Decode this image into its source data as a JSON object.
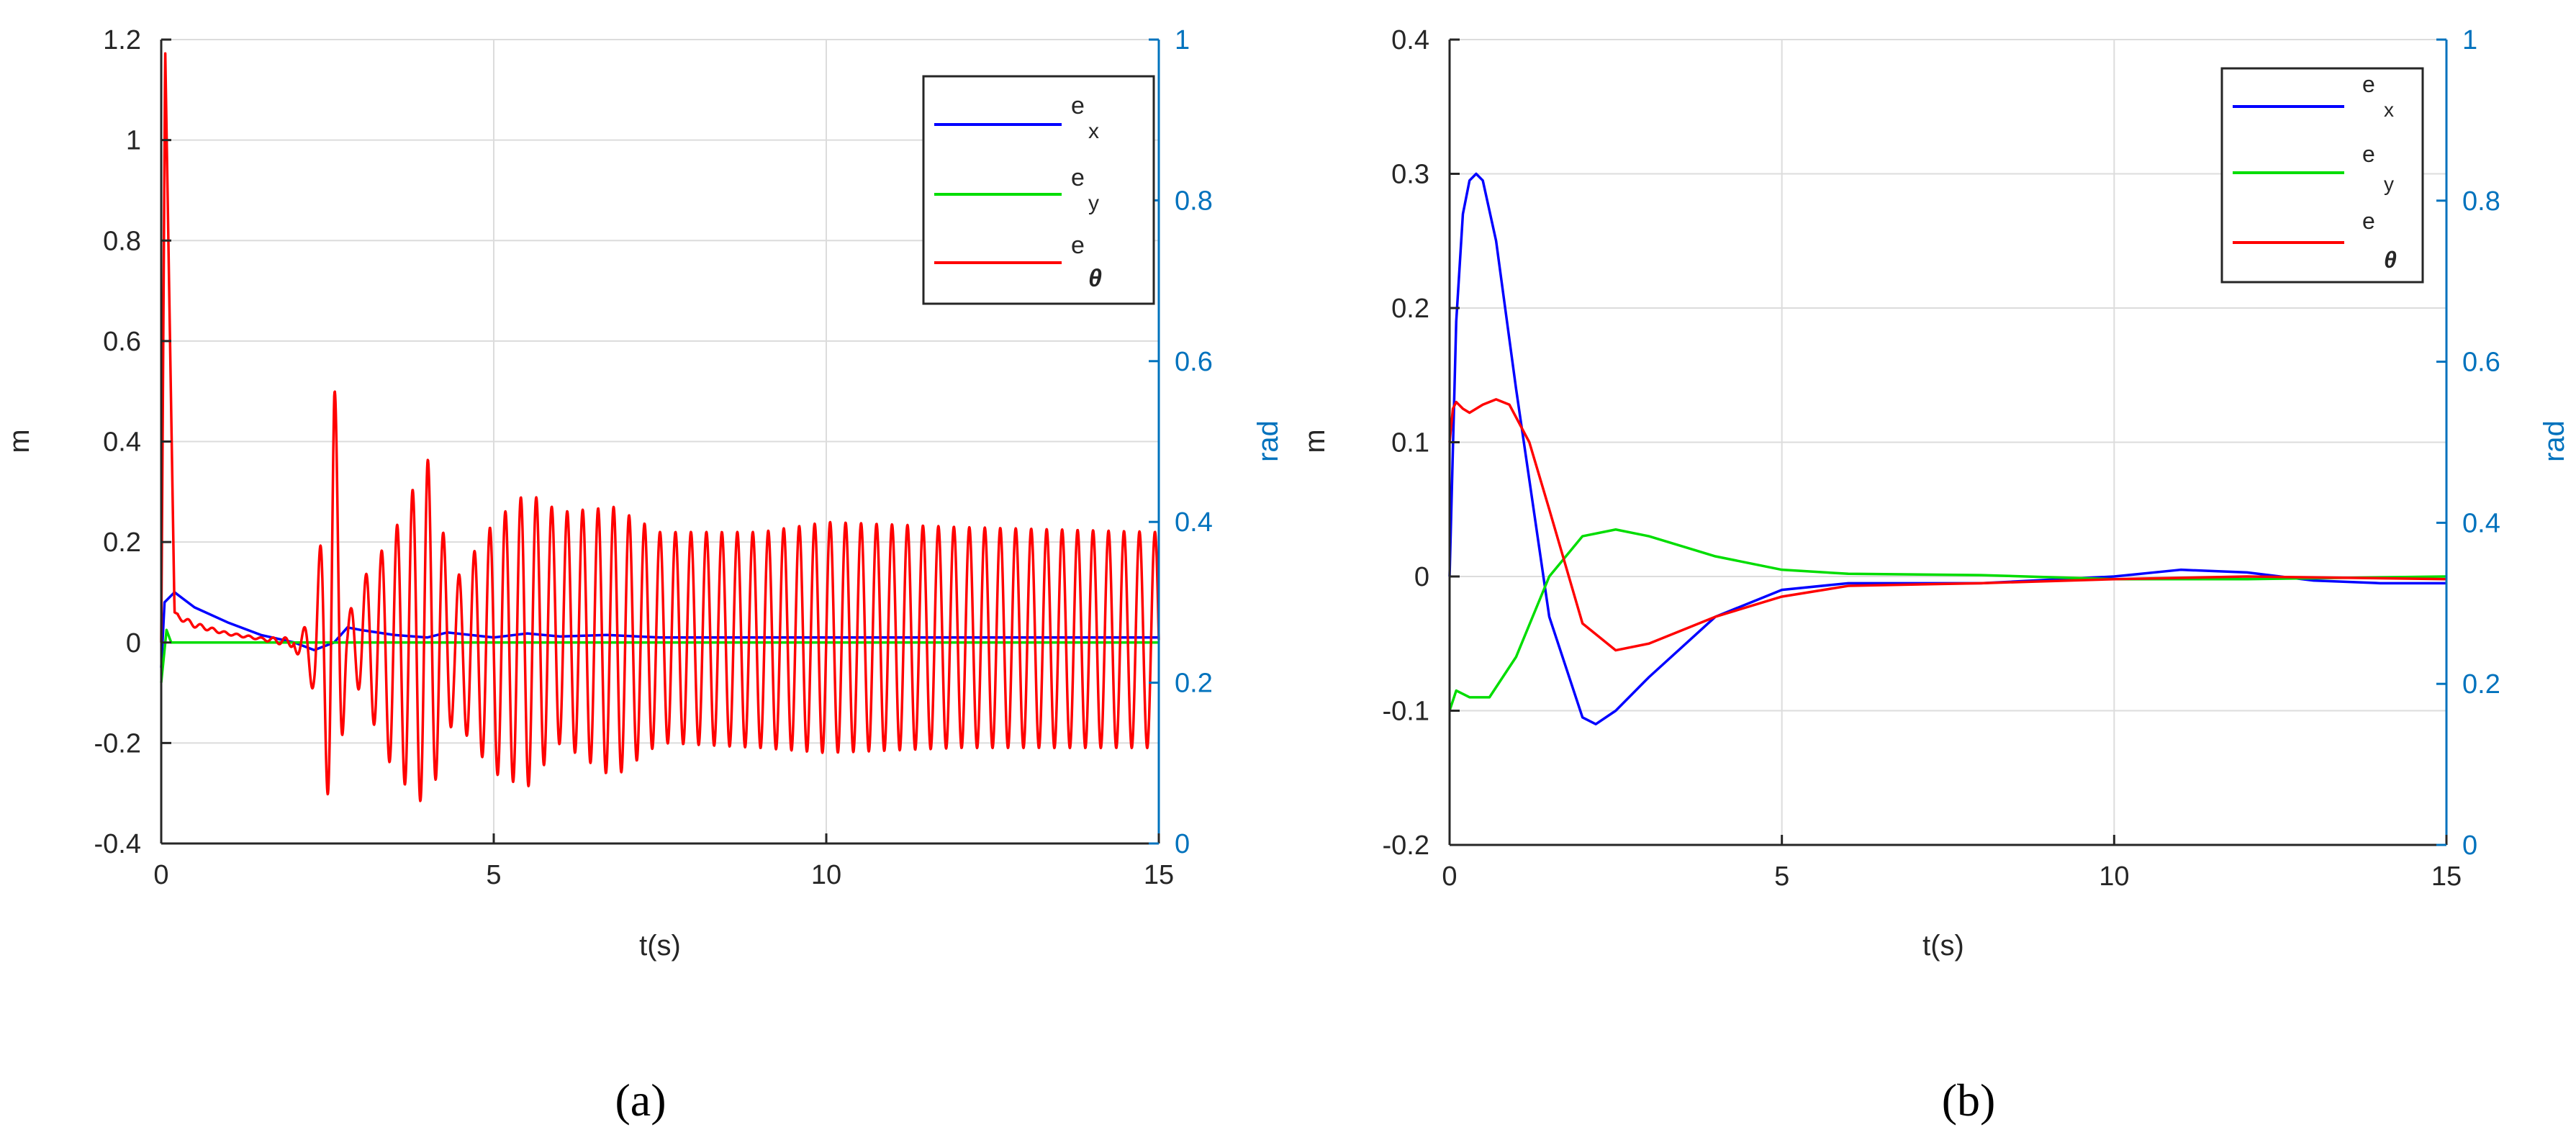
{
  "chart_data": [
    {
      "panel_label": "(a)",
      "type": "line",
      "xlabel": "t(s)",
      "ylabel_left": "m",
      "ylabel_right": "rad",
      "xlim": [
        0,
        15
      ],
      "ylim_left": [
        -0.4,
        1.2
      ],
      "ylim_right": [
        0,
        1
      ],
      "xticks": [
        "0",
        "5",
        "10",
        "15"
      ],
      "yticks_left": [
        "-0.4",
        "-0.2",
        "0",
        "0.2",
        "0.4",
        "0.6",
        "0.8",
        "1",
        "1.2"
      ],
      "yticks_right": [
        "0",
        "0.2",
        "0.4",
        "0.6",
        "0.8",
        "1"
      ],
      "grid": true,
      "legend_position": "top-right",
      "legend": [
        {
          "base": "e",
          "sub": "x",
          "color": "#0000ff"
        },
        {
          "base": "e",
          "sub": "y",
          "color": "#00dd00"
        },
        {
          "base": "e",
          "sub": "θ",
          "color": "#ff0000"
        }
      ],
      "series": [
        {
          "name": "e_x",
          "color": "#0000ff",
          "x": [
            0,
            0.05,
            0.2,
            0.5,
            1.0,
            1.5,
            2.0,
            2.3,
            2.6,
            2.8,
            3.0,
            3.5,
            4.0,
            4.3,
            5.0,
            5.5,
            6.0,
            6.7,
            7.5,
            9.0,
            12.0,
            15.0
          ],
          "y": [
            -0.05,
            0.08,
            0.1,
            0.07,
            0.04,
            0.015,
            0.0,
            -0.015,
            0.0,
            0.03,
            0.025,
            0.015,
            0.01,
            0.02,
            0.01,
            0.018,
            0.012,
            0.015,
            0.01,
            0.01,
            0.01,
            0.01
          ]
        },
        {
          "name": "e_y",
          "color": "#00dd00",
          "x": [
            0,
            0.08,
            0.15,
            0.3,
            1.0,
            3.0,
            15.0
          ],
          "y": [
            -0.08,
            0.025,
            0.0,
            0.0,
            0.0,
            0.0,
            0.0
          ]
        },
        {
          "name": "e_θ",
          "color": "#ff0000",
          "envelope": {
            "t": [
              0,
              0.06,
              0.2,
              0.5,
              1.0,
              1.5,
              2.0,
              2.3,
              2.6,
              2.8,
              3.0,
              3.5,
              4.0,
              4.4,
              5.0,
              5.5,
              6.0,
              6.8,
              7.5,
              9.0,
              10.0,
              12.0,
              15.0
            ],
            "upper": [
              0.0,
              1.18,
              0.06,
              0.04,
              0.02,
              0.01,
              0.01,
              0.05,
              0.53,
              0.05,
              0.12,
              0.22,
              0.37,
              0.12,
              0.24,
              0.3,
              0.26,
              0.27,
              0.22,
              0.22,
              0.24,
              0.23,
              0.22
            ],
            "lower": [
              0.0,
              0.0,
              0.05,
              0.03,
              0.015,
              0.005,
              -0.01,
              -0.1,
              -0.4,
              -0.06,
              -0.1,
              -0.26,
              -0.33,
              -0.15,
              -0.26,
              -0.29,
              -0.2,
              -0.27,
              -0.2,
              -0.21,
              -0.22,
              -0.21,
              -0.21
            ]
          }
        }
      ]
    },
    {
      "panel_label": "(b)",
      "type": "line",
      "xlabel": "t(s)",
      "ylabel_left": "m",
      "ylabel_right": "rad",
      "xlim": [
        0,
        15
      ],
      "ylim_left": [
        -0.2,
        0.4
      ],
      "ylim_right": [
        0,
        1
      ],
      "xticks": [
        "0",
        "5",
        "10",
        "15"
      ],
      "yticks_left": [
        "-0.2",
        "-0.1",
        "0",
        "0.1",
        "0.2",
        "0.3",
        "0.4"
      ],
      "yticks_right": [
        "0",
        "0.2",
        "0.4",
        "0.6",
        "0.8",
        "1"
      ],
      "grid": true,
      "legend_position": "top-right",
      "legend": [
        {
          "base": "e",
          "sub": "x",
          "color": "#0000ff"
        },
        {
          "base": "e",
          "sub": "y",
          "color": "#00dd00"
        },
        {
          "base": "e",
          "sub": "θ",
          "color": "#ff0000"
        }
      ],
      "series": [
        {
          "name": "e_x",
          "color": "#0000ff",
          "x": [
            0,
            0.1,
            0.2,
            0.3,
            0.4,
            0.5,
            0.7,
            1.0,
            1.5,
            2.0,
            2.2,
            2.5,
            3.0,
            4.0,
            5.0,
            6.0,
            7.0,
            8.0,
            10.0,
            11.0,
            12.0,
            13.0,
            14.0,
            15.0
          ],
          "x_note": "",
          "y": [
            0.0,
            0.19,
            0.27,
            0.295,
            0.3,
            0.295,
            0.25,
            0.14,
            -0.03,
            -0.105,
            -0.11,
            -0.1,
            -0.075,
            -0.03,
            -0.01,
            -0.005,
            -0.005,
            -0.005,
            0.0,
            0.005,
            0.003,
            -0.003,
            -0.005,
            -0.005
          ]
        },
        {
          "name": "e_y",
          "color": "#00dd00",
          "x": [
            0,
            0.1,
            0.3,
            0.6,
            1.0,
            1.5,
            2.0,
            2.5,
            3.0,
            4.0,
            5.0,
            6.0,
            8.0,
            10.0,
            12.0,
            15.0
          ],
          "y": [
            -0.1,
            -0.085,
            -0.09,
            -0.09,
            -0.06,
            0.0,
            0.03,
            0.035,
            0.03,
            0.015,
            0.005,
            0.002,
            0.001,
            -0.002,
            -0.002,
            0.0
          ]
        },
        {
          "name": "e_θ",
          "color": "#ff0000",
          "x": [
            0,
            0.05,
            0.1,
            0.2,
            0.3,
            0.5,
            0.7,
            0.9,
            1.2,
            1.5,
            2.0,
            2.5,
            3.0,
            4.0,
            5.0,
            6.0,
            8.0,
            10.0,
            12.0,
            15.0
          ],
          "y": [
            0.1,
            0.125,
            0.13,
            0.125,
            0.122,
            0.128,
            0.132,
            0.128,
            0.1,
            0.05,
            -0.035,
            -0.055,
            -0.05,
            -0.03,
            -0.015,
            -0.007,
            -0.005,
            -0.002,
            0.0,
            -0.002
          ]
        }
      ]
    }
  ]
}
